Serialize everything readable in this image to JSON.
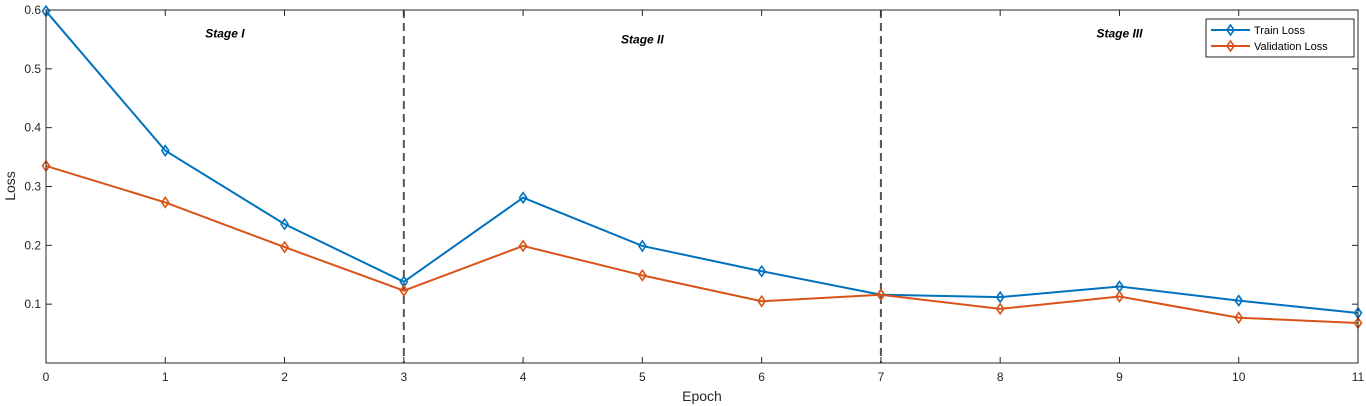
{
  "chart_data": {
    "type": "line",
    "xlabel": "Epoch",
    "ylabel": "Loss",
    "xlim": [
      0,
      11
    ],
    "ylim": [
      0,
      0.6
    ],
    "x_ticks": [
      "0",
      "1",
      "2",
      "3",
      "4",
      "5",
      "6",
      "7",
      "8",
      "9",
      "10",
      "11"
    ],
    "y_ticks": [
      "0.1",
      "0.2",
      "0.3",
      "0.4",
      "0.5",
      "0.6"
    ],
    "grid": false,
    "legend_position": "top-right",
    "x": [
      0,
      1,
      2,
      3,
      4,
      5,
      6,
      7,
      8,
      9,
      10,
      11
    ],
    "series": [
      {
        "name": "Train Loss",
        "color": "#0072BD",
        "marker": "diamond",
        "values": [
          0.598,
          0.361,
          0.236,
          0.138,
          0.281,
          0.199,
          0.156,
          0.116,
          0.112,
          0.13,
          0.106,
          0.085
        ]
      },
      {
        "name": "Validation Loss",
        "color": "#D95319",
        "marker": "diamond",
        "values": [
          0.335,
          0.273,
          0.197,
          0.123,
          0.199,
          0.149,
          0.105,
          0.116,
          0.092,
          0.113,
          0.077,
          0.068
        ]
      }
    ],
    "stage_boundaries": [
      3,
      7
    ],
    "stages": [
      {
        "label": "Stage I",
        "x": 1.5,
        "y": 0.56
      },
      {
        "label": "Stage II",
        "x": 5,
        "y": 0.55
      },
      {
        "label": "Stage III",
        "x": 9,
        "y": 0.56
      }
    ]
  }
}
